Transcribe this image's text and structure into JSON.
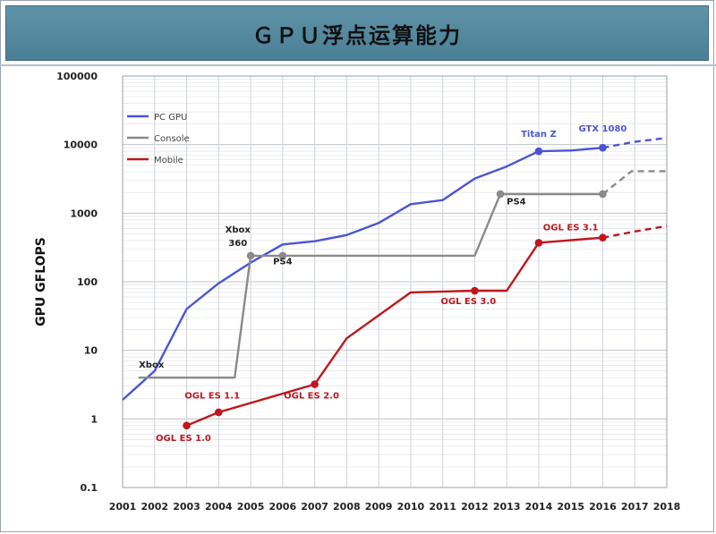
{
  "title": "ＧＰＵ浮点运算能力",
  "chart_data": {
    "type": "line",
    "title": "ＧＰＵ浮点运算能力",
    "xlabel": "",
    "ylabel": "GPU GFLOPS",
    "yscale": "log",
    "xlim": [
      2001,
      2018
    ],
    "ylim": [
      0.1,
      100000
    ],
    "x_ticks": [
      "2001",
      "2002",
      "2003",
      "2004",
      "2005",
      "2006",
      "2007",
      "2008",
      "2009",
      "2010",
      "2011",
      "2012",
      "2013",
      "2014",
      "2015",
      "2016",
      "2017",
      "2018"
    ],
    "y_ticks": [
      {
        "value": 0.1,
        "label": "0.1"
      },
      {
        "value": 1,
        "label": "1"
      },
      {
        "value": 10,
        "label": "10"
      },
      {
        "value": 100,
        "label": "100"
      },
      {
        "value": 1000,
        "label": "1000"
      },
      {
        "value": 10000,
        "label": "10000"
      },
      {
        "value": 100000,
        "label": "100000"
      }
    ],
    "grid": true,
    "legend_position": "top-left",
    "series": [
      {
        "name": "PC GPU",
        "color": "#4a55d6",
        "points": [
          [
            2001,
            1.9
          ],
          [
            2002,
            5
          ],
          [
            2003,
            40
          ],
          [
            2004,
            95
          ],
          [
            2005,
            190
          ],
          [
            2006,
            350
          ],
          [
            2007,
            390
          ],
          [
            2008,
            480
          ],
          [
            2009,
            720
          ],
          [
            2010,
            1350
          ],
          [
            2011,
            1550
          ],
          [
            2012,
            3200
          ],
          [
            2013,
            4800
          ],
          [
            2014,
            8000
          ],
          [
            2015,
            8200
          ],
          [
            2016,
            9000
          ]
        ],
        "projection": [
          [
            2016,
            9000
          ],
          [
            2017,
            11000
          ],
          [
            2018,
            12500
          ]
        ],
        "markers": [
          [
            2014,
            8000
          ],
          [
            2016,
            9000
          ]
        ]
      },
      {
        "name": "Console",
        "color": "#8a8a8a",
        "points": [
          [
            2001.5,
            4
          ],
          [
            2004,
            4
          ],
          [
            2004.5,
            4
          ],
          [
            2005,
            240
          ],
          [
            2006,
            240
          ],
          [
            2011,
            240
          ],
          [
            2012,
            240
          ],
          [
            2012.8,
            1900
          ],
          [
            2016,
            1900
          ]
        ],
        "projection": [
          [
            2016,
            1900
          ],
          [
            2016.9,
            4100
          ],
          [
            2018,
            4100
          ]
        ],
        "markers": [
          [
            2005,
            240
          ],
          [
            2006,
            240
          ],
          [
            2012.8,
            1900
          ],
          [
            2016,
            1900
          ]
        ]
      },
      {
        "name": "Mobile",
        "color": "#c0161c",
        "points": [
          [
            2003,
            0.8
          ],
          [
            2004,
            1.25
          ],
          [
            2007,
            3.2
          ],
          [
            2008,
            15
          ],
          [
            2010,
            70
          ],
          [
            2012,
            74
          ],
          [
            2013,
            74
          ],
          [
            2014,
            370
          ],
          [
            2016,
            440
          ]
        ],
        "projection": [
          [
            2016,
            440
          ],
          [
            2017,
            540
          ],
          [
            2018,
            650
          ]
        ],
        "markers": [
          [
            2003,
            0.8
          ],
          [
            2004,
            1.25
          ],
          [
            2007,
            3.2
          ],
          [
            2012,
            74
          ],
          [
            2014,
            370
          ],
          [
            2016,
            440
          ]
        ]
      }
    ],
    "annotations": [
      {
        "text": "Xbox",
        "x": 2001.9,
        "y": 5.6,
        "series": "Console"
      },
      {
        "text": "Xbox",
        "x": 2004.6,
        "y": 520,
        "series": "Console"
      },
      {
        "text": "360",
        "x": 2004.6,
        "y": 330,
        "series": "Console"
      },
      {
        "text": "PS4",
        "x": 2006,
        "y": 180,
        "series": "Console"
      },
      {
        "text": "PS4",
        "x": 2013.3,
        "y": 1350,
        "series": "Console"
      },
      {
        "text": "Titan Z",
        "x": 2014,
        "y": 13000,
        "series": "PC GPU"
      },
      {
        "text": "GTX 1080",
        "x": 2016,
        "y": 15500,
        "series": "PC GPU"
      },
      {
        "text": "OGL ES 1.0",
        "x": 2002.9,
        "y": 0.48,
        "series": "Mobile"
      },
      {
        "text": "OGL ES 1.1",
        "x": 2003.8,
        "y": 2.0,
        "series": "Mobile"
      },
      {
        "text": "OGL ES 2.0",
        "x": 2006.9,
        "y": 2.0,
        "series": "Mobile"
      },
      {
        "text": "OGL ES 3.0",
        "x": 2011.8,
        "y": 47,
        "series": "Mobile"
      },
      {
        "text": "OGL ES 3.1",
        "x": 2015,
        "y": 560,
        "series": "Mobile"
      }
    ]
  }
}
